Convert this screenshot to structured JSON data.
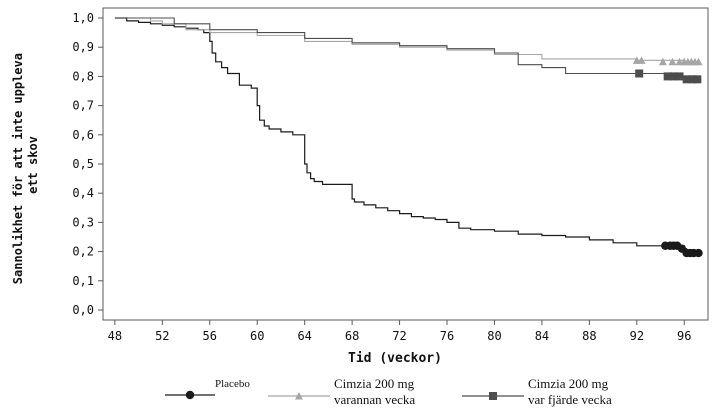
{
  "chart_data": {
    "type": "line",
    "title": "",
    "xlabel": "Tid (veckor)",
    "ylabel": [
      "Sannolikhet för att inte uppleva",
      "ett skov"
    ],
    "xlim": [
      47,
      98
    ],
    "ylim": [
      0,
      1.0
    ],
    "x_ticks": [
      48,
      52,
      56,
      60,
      64,
      68,
      72,
      76,
      80,
      84,
      88,
      92,
      96
    ],
    "x_tick_labels": [
      "48",
      "52",
      "56",
      "60",
      "64",
      "68",
      "72",
      "76",
      "80",
      "84",
      "88",
      "92",
      "96"
    ],
    "y_ticks": [
      0,
      0.1,
      0.2,
      0.3,
      0.4,
      0.5,
      0.6,
      0.7,
      0.8,
      0.9,
      1.0
    ],
    "y_tick_labels": [
      "0,0",
      "0,1",
      "0,2",
      "0,3",
      "0,4",
      "0,5",
      "0,6",
      "0,7",
      "0,8",
      "0,9",
      "1,0"
    ],
    "grid": false,
    "legend_placement": "bottom",
    "step": true,
    "series": [
      {
        "name": "Placebo",
        "color": "#1a1a1a",
        "marker": "circle",
        "x": [
          48,
          49,
          50,
          51,
          52,
          53,
          54,
          55,
          55.5,
          56,
          56.2,
          56.5,
          57,
          57.5,
          58.5,
          59.5,
          60,
          60.2,
          60.6,
          61,
          62,
          63,
          64,
          64.2,
          64.5,
          64.8,
          65.5,
          66,
          67,
          68,
          68.2,
          69,
          70,
          71,
          72,
          73,
          74,
          75,
          76,
          77,
          78,
          80,
          82,
          84,
          86,
          88,
          90,
          92,
          94,
          95,
          96,
          96.2,
          96.5,
          97
        ],
        "y": [
          1.0,
          0.99,
          0.985,
          0.98,
          0.975,
          0.97,
          0.965,
          0.96,
          0.95,
          0.92,
          0.88,
          0.85,
          0.83,
          0.81,
          0.77,
          0.76,
          0.7,
          0.65,
          0.63,
          0.62,
          0.61,
          0.6,
          0.5,
          0.47,
          0.45,
          0.44,
          0.43,
          0.43,
          0.43,
          0.38,
          0.37,
          0.36,
          0.35,
          0.34,
          0.33,
          0.32,
          0.315,
          0.31,
          0.3,
          0.28,
          0.275,
          0.27,
          0.26,
          0.255,
          0.25,
          0.24,
          0.23,
          0.22,
          0.22,
          0.22,
          0.21,
          0.2,
          0.195,
          0.195
        ],
        "censored_x": [
          94.4,
          94.8,
          95.1,
          95.4,
          95.8,
          96.2,
          96.5,
          96.8,
          97.2
        ],
        "censored_y": [
          0.22,
          0.22,
          0.22,
          0.22,
          0.21,
          0.195,
          0.195,
          0.195,
          0.195
        ]
      },
      {
        "name": "Cimzia 200 mg varannan vecka",
        "color": "#a6a6a6",
        "marker": "triangle",
        "x": [
          48,
          51,
          52,
          54,
          56,
          60,
          64,
          68,
          72,
          76,
          80,
          84,
          92,
          96,
          97
        ],
        "y": [
          1.0,
          0.99,
          0.98,
          0.96,
          0.95,
          0.94,
          0.92,
          0.91,
          0.9,
          0.89,
          0.875,
          0.86,
          0.855,
          0.85,
          0.85
        ],
        "censored_x": [
          92,
          92.4,
          94.2,
          95,
          95.6,
          96,
          96.3,
          96.6,
          96.9,
          97.2
        ],
        "censored_y": [
          0.855,
          0.855,
          0.85,
          0.85,
          0.85,
          0.85,
          0.85,
          0.85,
          0.85,
          0.85
        ]
      },
      {
        "name": "Cimzia 200 mg var fjärde vecka",
        "color": "#4d4d4d",
        "marker": "square",
        "x": [
          48,
          53,
          56,
          60,
          64,
          68,
          72,
          76,
          80,
          82,
          84,
          86,
          92,
          94.5,
          96.2,
          97
        ],
        "y": [
          1.0,
          0.98,
          0.96,
          0.95,
          0.93,
          0.915,
          0.905,
          0.895,
          0.88,
          0.84,
          0.83,
          0.81,
          0.81,
          0.8,
          0.79,
          0.79
        ],
        "censored_x": [
          92.2,
          94.6,
          95.1,
          95.6,
          96.2,
          96.7,
          97.1
        ],
        "censored_y": [
          0.81,
          0.8,
          0.8,
          0.8,
          0.79,
          0.79,
          0.79
        ]
      }
    ],
    "legend": [
      {
        "series": 0,
        "lines": [
          "Placebo"
        ]
      },
      {
        "series": 1,
        "lines": [
          "Cimzia 200 mg",
          "varannan vecka"
        ]
      },
      {
        "series": 2,
        "lines": [
          "Cimzia 200 mg",
          "var fjärde vecka"
        ]
      }
    ]
  }
}
